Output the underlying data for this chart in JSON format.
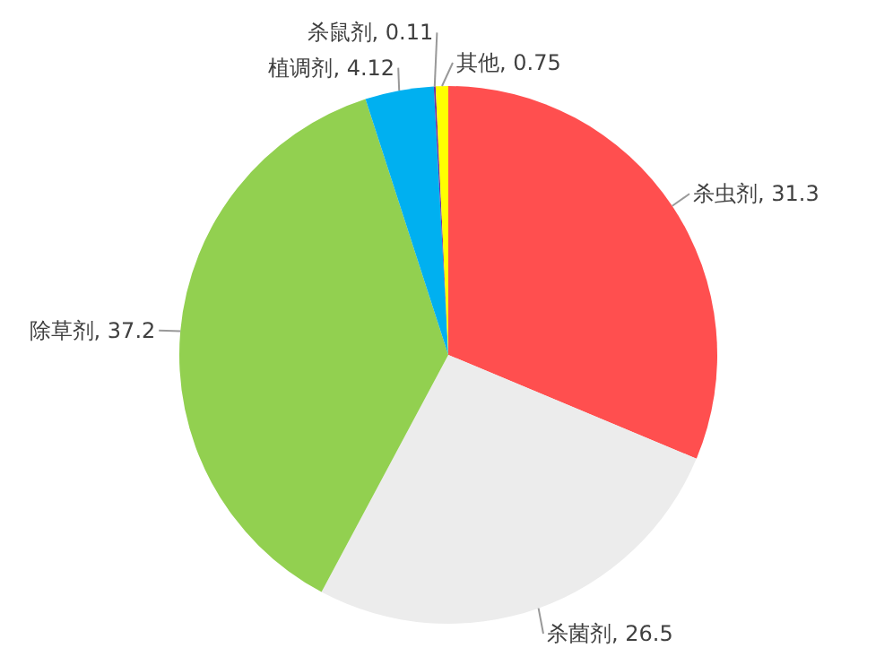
{
  "chart_data": {
    "type": "pie",
    "categories": [
      "杀虫剂",
      "杀菌剂",
      "除草剂",
      "植调剂",
      "杀鼠剂",
      "其他"
    ],
    "values": [
      31.3,
      26.5,
      37.2,
      4.12,
      0.11,
      0.75
    ],
    "value_labels": [
      ", 31.3",
      ", 26.5",
      ", 37.2",
      ", 4.12",
      ", 0.11",
      ", 0.75"
    ],
    "colors": [
      "#ff4f4f",
      "#ececec",
      "#92d050",
      "#00b0f0",
      "#7030a0",
      "#ffff00"
    ]
  }
}
